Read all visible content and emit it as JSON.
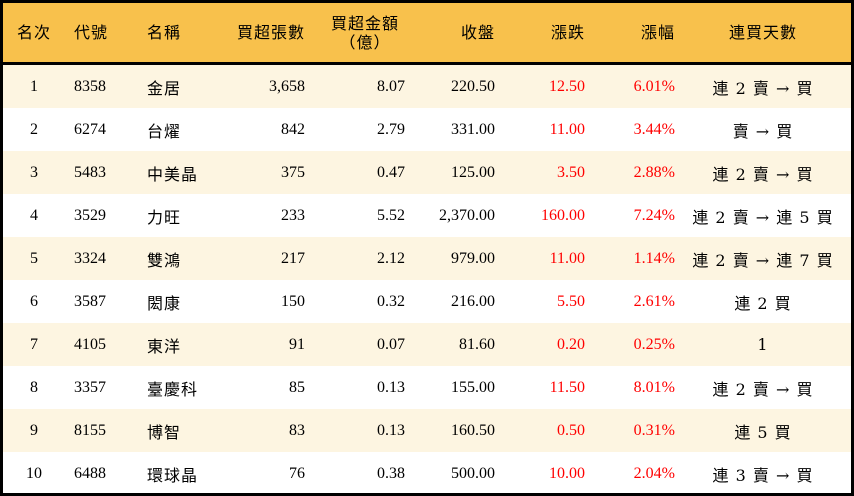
{
  "headers": [
    "名次",
    "代號",
    "名稱",
    "買超張數",
    "買超金額",
    "（億）",
    "收盤",
    "漲跌",
    "漲幅",
    "連買天數"
  ],
  "colors": {
    "header_bg": "#f8c14c",
    "odd_row_bg": "#fdf5e1",
    "up": "#ff0000"
  },
  "rows": [
    {
      "rank": "1",
      "code": "8358",
      "name": "金居",
      "shares": "3,658",
      "amount": "8.07",
      "close": "220.50",
      "change": "12.50",
      "pct": "6.01%",
      "streak": "連 2 賣 → 買"
    },
    {
      "rank": "2",
      "code": "6274",
      "name": "台燿",
      "shares": "842",
      "amount": "2.79",
      "close": "331.00",
      "change": "11.00",
      "pct": "3.44%",
      "streak": "賣 → 買"
    },
    {
      "rank": "3",
      "code": "5483",
      "name": "中美晶",
      "shares": "375",
      "amount": "0.47",
      "close": "125.00",
      "change": "3.50",
      "pct": "2.88%",
      "streak": "連 2 賣 → 買"
    },
    {
      "rank": "4",
      "code": "3529",
      "name": "力旺",
      "shares": "233",
      "amount": "5.52",
      "close": "2,370.00",
      "change": "160.00",
      "pct": "7.24%",
      "streak": "連 2 賣 → 連 5 買"
    },
    {
      "rank": "5",
      "code": "3324",
      "name": "雙鴻",
      "shares": "217",
      "amount": "2.12",
      "close": "979.00",
      "change": "11.00",
      "pct": "1.14%",
      "streak": "連 2 賣 → 連 7 買"
    },
    {
      "rank": "6",
      "code": "3587",
      "name": "閎康",
      "shares": "150",
      "amount": "0.32",
      "close": "216.00",
      "change": "5.50",
      "pct": "2.61%",
      "streak": "連 2 買"
    },
    {
      "rank": "7",
      "code": "4105",
      "name": "東洋",
      "shares": "91",
      "amount": "0.07",
      "close": "81.60",
      "change": "0.20",
      "pct": "0.25%",
      "streak": "1"
    },
    {
      "rank": "8",
      "code": "3357",
      "name": "臺慶科",
      "shares": "85",
      "amount": "0.13",
      "close": "155.00",
      "change": "11.50",
      "pct": "8.01%",
      "streak": "連 2 賣 → 買"
    },
    {
      "rank": "9",
      "code": "8155",
      "name": "博智",
      "shares": "83",
      "amount": "0.13",
      "close": "160.50",
      "change": "0.50",
      "pct": "0.31%",
      "streak": "連 5 買"
    },
    {
      "rank": "10",
      "code": "6488",
      "name": "環球晶",
      "shares": "76",
      "amount": "0.38",
      "close": "500.00",
      "change": "10.00",
      "pct": "2.04%",
      "streak": "連 3 賣 → 買"
    }
  ]
}
